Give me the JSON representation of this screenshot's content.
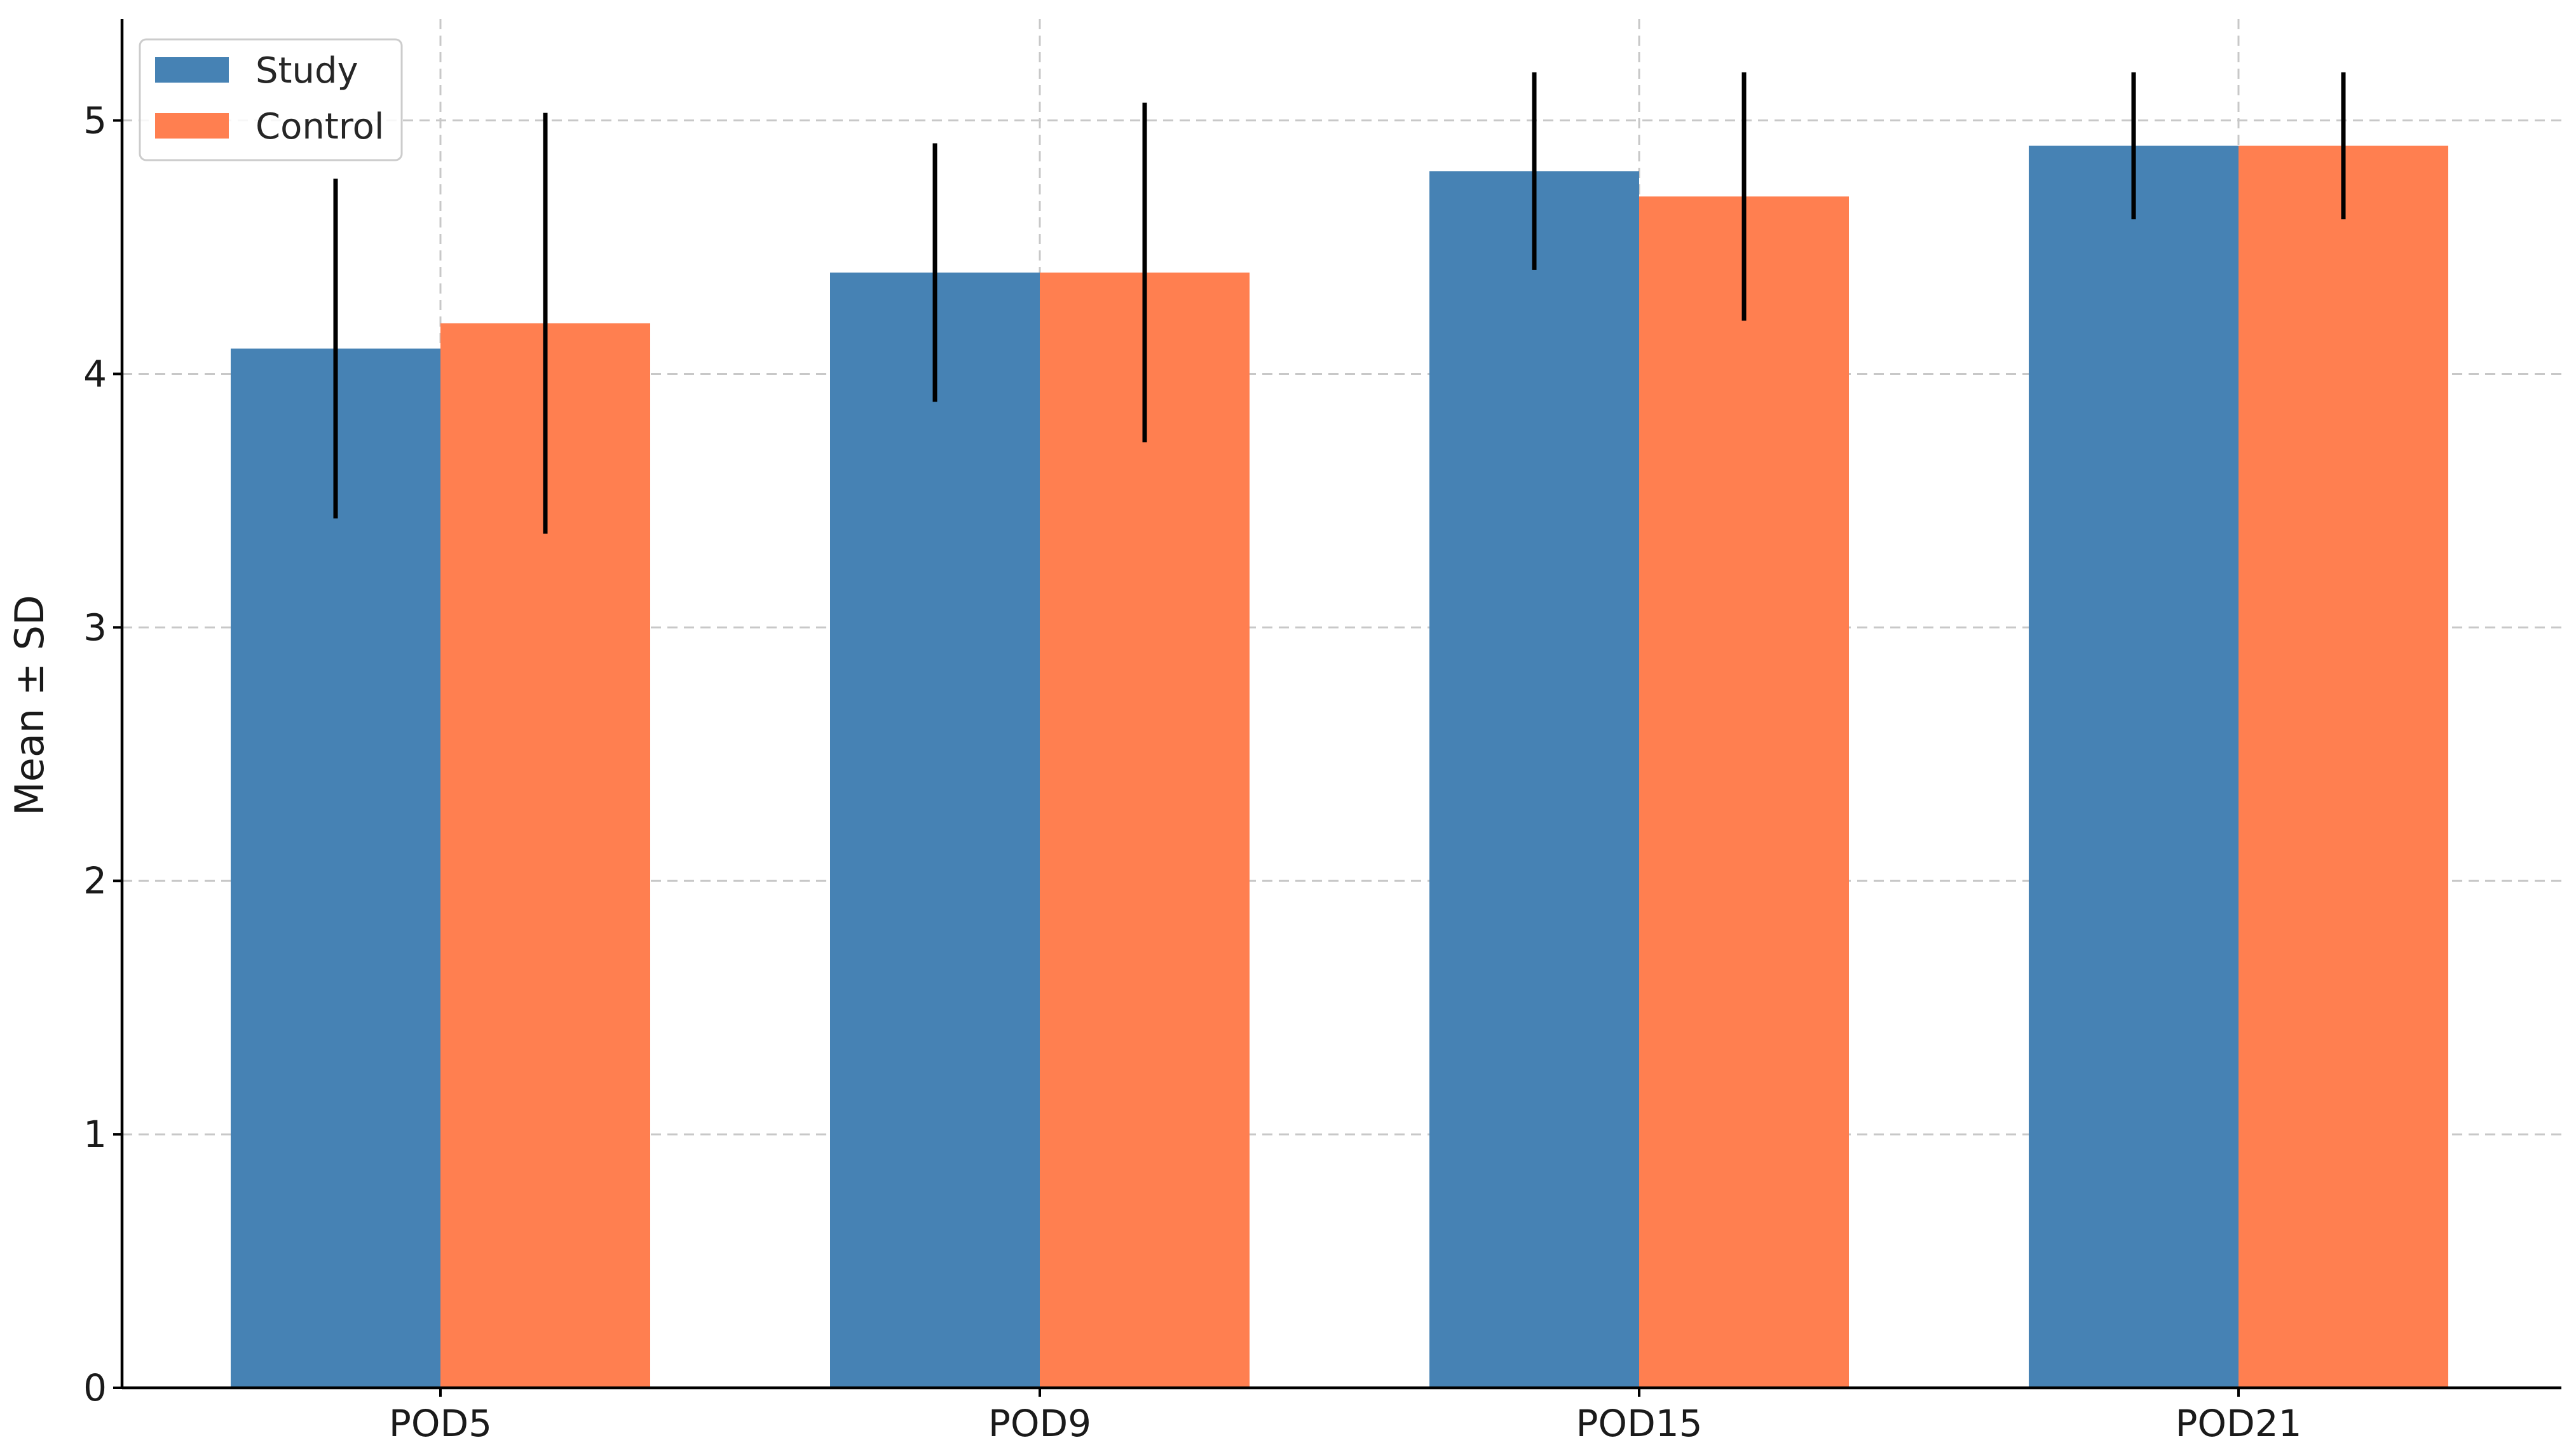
{
  "chart_data": {
    "type": "bar",
    "categories": [
      "POD5",
      "POD9",
      "POD15",
      "POD21"
    ],
    "series": [
      {
        "name": "Study",
        "values": [
          4.1,
          4.4,
          4.8,
          4.9
        ],
        "sd": [
          0.67,
          0.51,
          0.39,
          0.29
        ],
        "color": "#4682B4"
      },
      {
        "name": "Control",
        "values": [
          4.2,
          4.4,
          4.7,
          4.9
        ],
        "sd": [
          0.83,
          0.67,
          0.49,
          0.29
        ],
        "color": "#FF7F50"
      }
    ],
    "title": "",
    "xlabel": "",
    "ylabel": "Mean ± SD",
    "ylim": [
      0,
      5.4
    ],
    "yticks": [
      0,
      1,
      2,
      3,
      4,
      5
    ],
    "grid": true,
    "legend_position": "top-left"
  }
}
